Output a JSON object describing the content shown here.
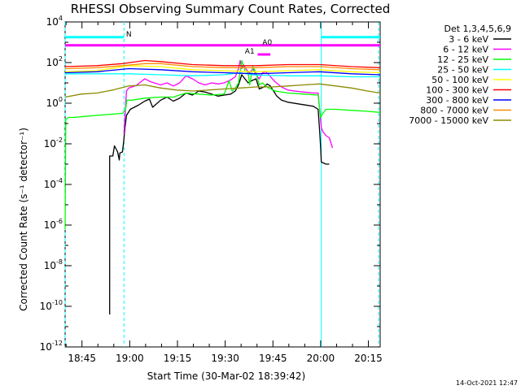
{
  "chart_data": {
    "type": "line",
    "title": "RHESSI Observing Summary Count Rates, Corrected",
    "xlabel": "Start Time (30-Mar-02 18:39:42)",
    "ylabel": "Corrected Count Rate (s⁻¹ detector⁻¹)",
    "x_unit": "minutes since 18:39:42",
    "xlim": [
      0,
      99
    ],
    "ylim_log10": [
      -12,
      4
    ],
    "yscale": "log",
    "x_ticks": [
      {
        "label": "18:45",
        "value": 5.3
      },
      {
        "label": "19:00",
        "value": 20.3
      },
      {
        "label": "19:15",
        "value": 35.3
      },
      {
        "label": "19:30",
        "value": 50.3
      },
      {
        "label": "19:45",
        "value": 65.3
      },
      {
        "label": "20:00",
        "value": 80.3
      },
      {
        "label": "20:15",
        "value": 95.3
      }
    ],
    "y_ticks": [
      {
        "base": "10",
        "exp": "4",
        "value": 4
      },
      {
        "base": "10",
        "exp": "2",
        "value": 2
      },
      {
        "base": "10",
        "exp": "0",
        "value": 0
      },
      {
        "base": "10",
        "exp": "-2",
        "value": -2
      },
      {
        "base": "10",
        "exp": "-4",
        "value": -4
      },
      {
        "base": "10",
        "exp": "-6",
        "value": -6
      },
      {
        "base": "10",
        "exp": "-8",
        "value": -8
      },
      {
        "base": "10",
        "exp": "-10",
        "value": -10
      },
      {
        "base": "10",
        "exp": "-12",
        "value": -12
      }
    ],
    "legend_title": "Det 1,3,4,5,6,9",
    "legend_position": "right",
    "series": [
      {
        "name": "3 - 6 keV",
        "color": "#000000",
        "points": [
          [
            14,
            -10.4
          ],
          [
            14,
            -2.6
          ],
          [
            15,
            -2.6
          ],
          [
            15.5,
            -2.1
          ],
          [
            16.5,
            -2.4
          ],
          [
            17,
            -2.8
          ],
          [
            17.2,
            -2.45
          ],
          [
            18,
            -2.4
          ],
          [
            18.4,
            -1.9
          ],
          [
            18.8,
            -1.2
          ],
          [
            19.3,
            -0.6
          ],
          [
            20.5,
            -0.3
          ],
          [
            23,
            -0.1
          ],
          [
            25,
            0.1
          ],
          [
            26.5,
            0.2
          ],
          [
            27.5,
            -0.2
          ],
          [
            30,
            0.15
          ],
          [
            32,
            0.3
          ],
          [
            34,
            0.1
          ],
          [
            36,
            0.25
          ],
          [
            38,
            0.5
          ],
          [
            40,
            0.4
          ],
          [
            42,
            0.6
          ],
          [
            44,
            0.55
          ],
          [
            46,
            0.45
          ],
          [
            48,
            0.35
          ],
          [
            50,
            0.4
          ],
          [
            52,
            0.45
          ],
          [
            53.5,
            0.6
          ],
          [
            54.5,
            0.9
          ],
          [
            55.5,
            1.4
          ],
          [
            56.5,
            1.2
          ],
          [
            57.5,
            1.0
          ],
          [
            58.5,
            1.1
          ],
          [
            60,
            1.2
          ],
          [
            61,
            0.7
          ],
          [
            62.5,
            0.8
          ],
          [
            63.5,
            0.95
          ],
          [
            64.5,
            0.85
          ],
          [
            65.5,
            0.6
          ],
          [
            66.5,
            0.35
          ],
          [
            68,
            0.15
          ],
          [
            70,
            0.05
          ],
          [
            74,
            -0.05
          ],
          [
            78,
            -0.15
          ],
          [
            79.5,
            -0.3
          ],
          [
            80,
            -1.4
          ],
          [
            80.3,
            -2.2
          ],
          [
            80.5,
            -2.9
          ],
          [
            82,
            -3.0
          ],
          [
            83,
            -3.0
          ]
        ]
      },
      {
        "name": "6 - 12 keV",
        "color": "#ff00ff",
        "points": [
          [
            18.5,
            -1.5
          ],
          [
            19.3,
            0.6
          ],
          [
            20,
            0.75
          ],
          [
            22,
            0.85
          ],
          [
            23,
            0.95
          ],
          [
            25,
            1.2
          ],
          [
            27,
            1.05
          ],
          [
            30,
            0.9
          ],
          [
            32,
            1.0
          ],
          [
            34,
            0.85
          ],
          [
            36,
            1.0
          ],
          [
            38,
            1.35
          ],
          [
            40,
            1.2
          ],
          [
            42,
            1.0
          ],
          [
            44,
            0.9
          ],
          [
            46,
            1.0
          ],
          [
            48,
            0.95
          ],
          [
            50,
            1.0
          ],
          [
            52,
            1.15
          ],
          [
            53.5,
            1.3
          ],
          [
            54.5,
            1.7
          ],
          [
            55,
            2.1
          ],
          [
            55.5,
            1.7
          ],
          [
            56,
            1.9
          ],
          [
            57,
            1.65
          ],
          [
            58,
            1.5
          ],
          [
            59,
            1.7
          ],
          [
            60,
            1.4
          ],
          [
            61,
            1.2
          ],
          [
            62,
            1.5
          ],
          [
            63,
            1.55
          ],
          [
            64,
            1.4
          ],
          [
            66,
            1.05
          ],
          [
            68,
            0.8
          ],
          [
            70,
            0.65
          ],
          [
            72,
            0.6
          ],
          [
            75,
            0.55
          ],
          [
            78,
            0.5
          ],
          [
            79.5,
            0.5
          ],
          [
            80.5,
            -1.2
          ],
          [
            81,
            -1.4
          ],
          [
            82,
            -1.6
          ],
          [
            83,
            -1.7
          ],
          [
            84,
            -2.2
          ]
        ]
      },
      {
        "name": "12 - 25 keV",
        "color": "#00ff00",
        "points": [
          [
            0,
            -6.2
          ],
          [
            0.2,
            -0.8
          ],
          [
            1,
            -0.7
          ],
          [
            3,
            -0.7
          ],
          [
            6,
            -0.65
          ],
          [
            10,
            -0.6
          ],
          [
            14,
            -0.55
          ],
          [
            18,
            -0.5
          ],
          [
            19,
            -0.3
          ],
          [
            19.4,
            0.15
          ],
          [
            21,
            0.15
          ],
          [
            25,
            0.25
          ],
          [
            30,
            0.3
          ],
          [
            34,
            0.3
          ],
          [
            38,
            0.5
          ],
          [
            42,
            0.45
          ],
          [
            46,
            0.4
          ],
          [
            50,
            0.45
          ],
          [
            51.5,
            1.1
          ],
          [
            52.5,
            0.6
          ],
          [
            53.5,
            0.75
          ],
          [
            54.5,
            1.0
          ],
          [
            55.5,
            2.1
          ],
          [
            56.5,
            1.6
          ],
          [
            57.5,
            1.5
          ],
          [
            58,
            0.9
          ],
          [
            59,
            1.8
          ],
          [
            60,
            1.5
          ],
          [
            61,
            0.9
          ],
          [
            62,
            1.0
          ],
          [
            63,
            0.85
          ],
          [
            64,
            0.75
          ],
          [
            66,
            0.6
          ],
          [
            70,
            0.5
          ],
          [
            75,
            0.45
          ],
          [
            79.5,
            0.4
          ],
          [
            80.3,
            -0.7
          ],
          [
            81,
            -0.5
          ],
          [
            82,
            -0.3
          ],
          [
            85,
            -0.3
          ],
          [
            90,
            -0.35
          ],
          [
            95,
            -0.4
          ],
          [
            99,
            -0.45
          ]
        ]
      },
      {
        "name": "25 - 50 keV",
        "color": "#00ffff",
        "points": [
          [
            0,
            1.45
          ],
          [
            10,
            1.45
          ],
          [
            20,
            1.45
          ],
          [
            30,
            1.4
          ],
          [
            40,
            1.35
          ],
          [
            50,
            1.4
          ],
          [
            55,
            1.5
          ],
          [
            57,
            1.45
          ],
          [
            60,
            1.38
          ],
          [
            70,
            1.35
          ],
          [
            80,
            1.35
          ],
          [
            90,
            1.3
          ],
          [
            99,
            1.3
          ]
        ]
      },
      {
        "name": "50 - 100 keV",
        "color": "#ffff00",
        "points": [
          [
            0,
            1.55
          ],
          [
            10,
            1.6
          ],
          [
            20,
            1.85
          ],
          [
            30,
            1.8
          ],
          [
            40,
            1.65
          ],
          [
            50,
            1.6
          ],
          [
            60,
            1.55
          ],
          [
            70,
            1.6
          ],
          [
            80,
            1.65
          ],
          [
            90,
            1.55
          ],
          [
            99,
            1.5
          ]
        ]
      },
      {
        "name": "100 - 300 keV",
        "color": "#ff0000",
        "points": [
          [
            0,
            1.8
          ],
          [
            10,
            1.85
          ],
          [
            18,
            1.95
          ],
          [
            25,
            2.1
          ],
          [
            30,
            2.05
          ],
          [
            40,
            1.9
          ],
          [
            50,
            1.85
          ],
          [
            60,
            1.85
          ],
          [
            70,
            1.9
          ],
          [
            80,
            1.9
          ],
          [
            90,
            1.8
          ],
          [
            99,
            1.75
          ]
        ]
      },
      {
        "name": "300 - 800 keV",
        "color": "#0000ff",
        "points": [
          [
            0,
            1.5
          ],
          [
            10,
            1.55
          ],
          [
            20,
            1.7
          ],
          [
            30,
            1.65
          ],
          [
            40,
            1.55
          ],
          [
            50,
            1.5
          ],
          [
            60,
            1.45
          ],
          [
            70,
            1.5
          ],
          [
            80,
            1.55
          ],
          [
            90,
            1.45
          ],
          [
            99,
            1.4
          ]
        ]
      },
      {
        "name": "800 - 7000 keV",
        "color": "#ff8c00",
        "points": [
          [
            0,
            1.7
          ],
          [
            10,
            1.75
          ],
          [
            18,
            1.85
          ],
          [
            25,
            1.95
          ],
          [
            30,
            1.95
          ],
          [
            40,
            1.8
          ],
          [
            50,
            1.75
          ],
          [
            60,
            1.75
          ],
          [
            70,
            1.8
          ],
          [
            80,
            1.8
          ],
          [
            90,
            1.7
          ],
          [
            99,
            1.65
          ]
        ]
      },
      {
        "name": "7000 - 15000 keV",
        "color": "#8b8b00",
        "points": [
          [
            0,
            0.3
          ],
          [
            5,
            0.45
          ],
          [
            10,
            0.5
          ],
          [
            15,
            0.65
          ],
          [
            20,
            0.85
          ],
          [
            25,
            0.9
          ],
          [
            30,
            0.75
          ],
          [
            35,
            0.65
          ],
          [
            40,
            0.6
          ],
          [
            45,
            0.65
          ],
          [
            50,
            0.7
          ],
          [
            55,
            0.75
          ],
          [
            60,
            0.8
          ],
          [
            65,
            0.8
          ],
          [
            70,
            0.85
          ],
          [
            75,
            0.9
          ],
          [
            80,
            0.95
          ],
          [
            85,
            0.85
          ],
          [
            90,
            0.75
          ],
          [
            95,
            0.6
          ],
          [
            99,
            0.5
          ]
        ]
      }
    ],
    "state_bars": [
      {
        "label": "N",
        "color": "#00ffff",
        "x_start": 0,
        "x_end": 18.5,
        "y_log10": 3.25,
        "label_at": 20
      },
      {
        "label": "",
        "color": "#00ffff",
        "x_start": 80.5,
        "x_end": 99,
        "y_log10": 3.25,
        "label_at": null
      },
      {
        "label": "A0",
        "color": "#ff00ff",
        "x_start": 0,
        "x_end": 99,
        "y_log10": 2.85,
        "label_at": 63.5
      },
      {
        "label": "A1",
        "color": "#ff00ff",
        "x_start": 60.5,
        "x_end": 64.5,
        "y_log10": 2.4,
        "label_at": 58
      }
    ],
    "night_lines": [
      {
        "x": 0,
        "style": "dashed"
      },
      {
        "x": 18.5,
        "style": "dashed"
      },
      {
        "x": 80.5,
        "style": "solid"
      },
      {
        "x": 98.5,
        "style": "dashed"
      }
    ],
    "footer_timestamp": "14-Oct-2021 12:47"
  }
}
